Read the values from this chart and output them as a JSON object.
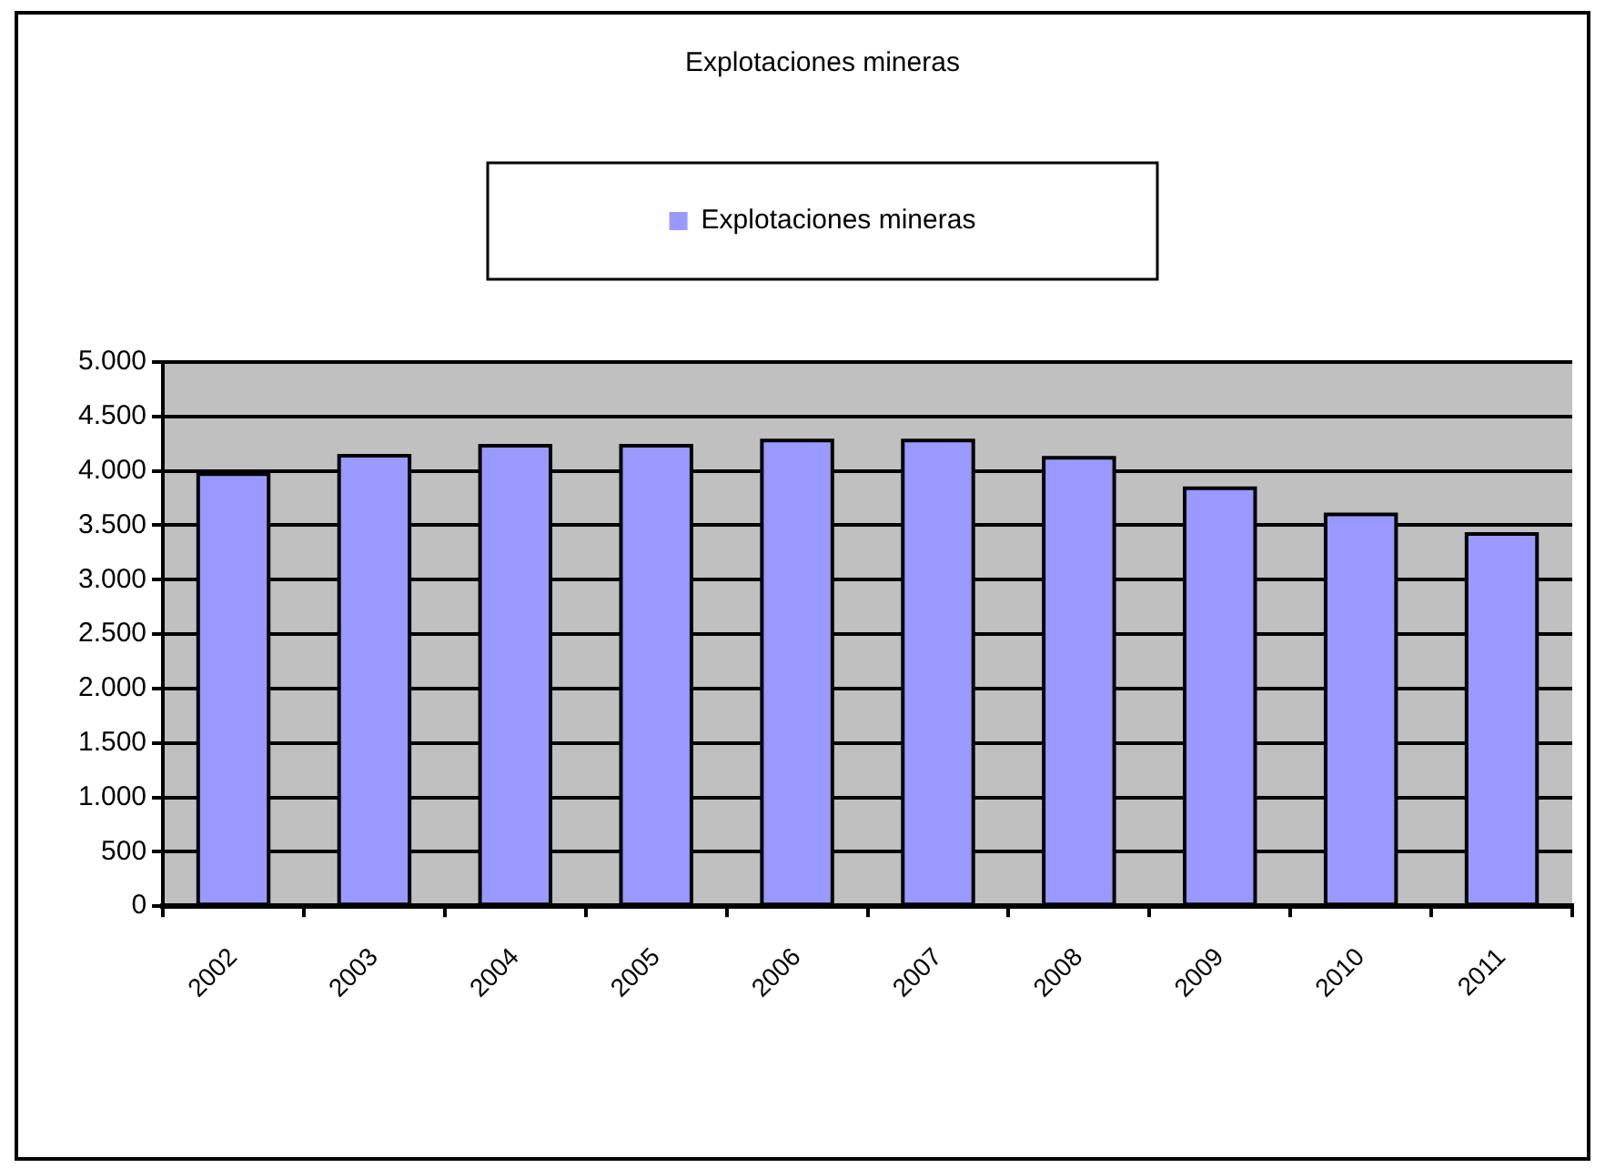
{
  "chart_data": {
    "type": "bar",
    "title": "Explotaciones mineras",
    "categories": [
      "2002",
      "2003",
      "2004",
      "2005",
      "2006",
      "2007",
      "2008",
      "2009",
      "2010",
      "2011"
    ],
    "series": [
      {
        "name": "Explotaciones mineras",
        "color": "#9999ff",
        "values": [
          3970,
          4140,
          4230,
          4230,
          4280,
          4280,
          4120,
          3840,
          3600,
          3420
        ]
      }
    ],
    "ylim": [
      0,
      5000
    ],
    "yticks": [
      {
        "value": 0,
        "label": "0"
      },
      {
        "value": 500,
        "label": "500"
      },
      {
        "value": 1000,
        "label": "1.000"
      },
      {
        "value": 1500,
        "label": "1.500"
      },
      {
        "value": 2000,
        "label": "2.000"
      },
      {
        "value": 2500,
        "label": "2.500"
      },
      {
        "value": 3000,
        "label": "3.000"
      },
      {
        "value": 3500,
        "label": "3.500"
      },
      {
        "value": 4000,
        "label": "4.000"
      },
      {
        "value": 4500,
        "label": "4.500"
      },
      {
        "value": 5000,
        "label": "5.000"
      }
    ],
    "grid": "y",
    "legend": "top"
  }
}
